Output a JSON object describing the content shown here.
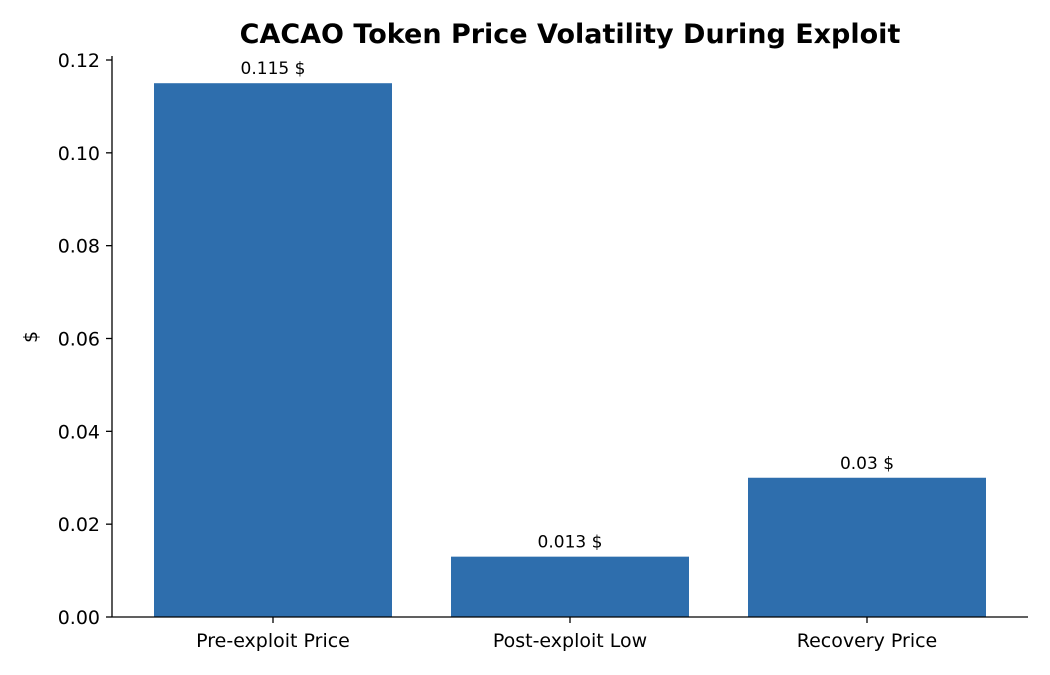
{
  "chart_data": {
    "type": "bar",
    "title": "CACAO Token Price Volatility During Exploit",
    "xlabel": "",
    "ylabel": "$",
    "categories": [
      "Pre-exploit Price",
      "Post-exploit Low",
      "Recovery Price"
    ],
    "values": [
      0.115,
      0.013,
      0.03
    ],
    "value_labels": [
      "0.115 $",
      "0.013 $",
      "0.03 $"
    ],
    "ylim": [
      0,
      0.12
    ],
    "yticks": [
      0.0,
      0.02,
      0.04,
      0.06,
      0.08,
      0.1,
      0.12
    ],
    "ytick_labels": [
      "0.00",
      "0.02",
      "0.04",
      "0.06",
      "0.08",
      "0.10",
      "0.12"
    ],
    "grid": false,
    "legend": "none",
    "bar_color": "#2e6ead"
  }
}
